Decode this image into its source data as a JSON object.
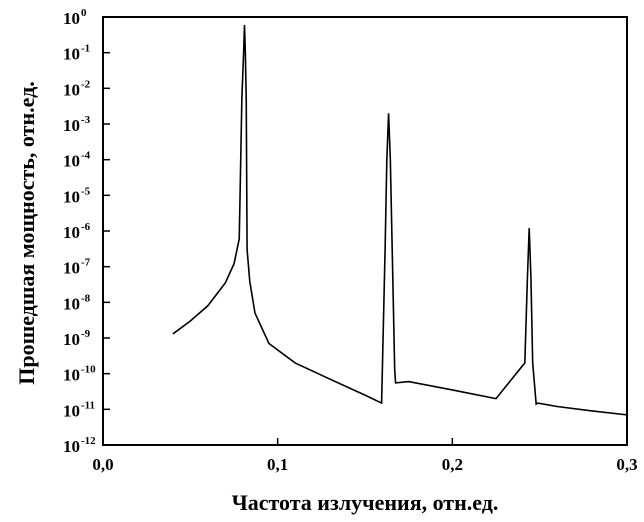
{
  "chart_data": {
    "type": "line",
    "title": "",
    "xlabel": "Частота излучения, отн.ед.",
    "ylabel": "Прошедшая мощность, отн.ед.",
    "xlim": [
      0.0,
      0.3
    ],
    "ylim": [
      1e-12,
      1
    ],
    "y_scale": "log",
    "grid": false,
    "legend": "none",
    "line_color": "#000000",
    "x_ticks": [
      {
        "value": 0.0,
        "label": "0,0"
      },
      {
        "value": 0.1,
        "label": "0,1"
      },
      {
        "value": 0.2,
        "label": "0,2"
      },
      {
        "value": 0.3,
        "label": "0,3"
      }
    ],
    "y_ticks": [
      {
        "exp": 0,
        "base": "10",
        "sup": "0"
      },
      {
        "exp": -1,
        "base": "10",
        "sup": "-1"
      },
      {
        "exp": -2,
        "base": "10",
        "sup": "-2"
      },
      {
        "exp": -3,
        "base": "10",
        "sup": "-3"
      },
      {
        "exp": -4,
        "base": "10",
        "sup": "-4"
      },
      {
        "exp": -5,
        "base": "10",
        "sup": "-5"
      },
      {
        "exp": -6,
        "base": "10",
        "sup": "-6"
      },
      {
        "exp": -7,
        "base": "10",
        "sup": "-7"
      },
      {
        "exp": -8,
        "base": "10",
        "sup": "-8"
      },
      {
        "exp": -9,
        "base": "10",
        "sup": "-9"
      },
      {
        "exp": -10,
        "base": "10",
        "sup": "-10"
      },
      {
        "exp": -11,
        "base": "10",
        "sup": "-11"
      },
      {
        "exp": -12,
        "base": "10",
        "sup": "-12"
      }
    ],
    "series": [
      {
        "x": [
          0.04,
          0.05,
          0.06,
          0.07,
          0.075,
          0.078,
          0.0795,
          0.0805,
          0.081,
          0.0815,
          0.082,
          0.0825,
          0.084,
          0.087,
          0.095,
          0.11,
          0.13,
          0.15,
          0.1595,
          0.1615,
          0.1625,
          0.1635,
          0.1645,
          0.166,
          0.167,
          0.1675,
          0.175,
          0.2,
          0.225,
          0.2415,
          0.243,
          0.244,
          0.245,
          0.246,
          0.248,
          0.249,
          0.26,
          0.28,
          0.3
        ],
        "y": [
          1.3e-09,
          3e-09,
          8e-09,
          3.5e-08,
          1.2e-07,
          6e-07,
          0.005,
          0.1,
          0.6,
          0.1,
          0.005,
          3e-07,
          4e-08,
          5e-09,
          7e-10,
          2e-10,
          7e-11,
          2.5e-11,
          1.5e-11,
          3e-07,
          0.0001,
          0.002,
          0.0001,
          3e-08,
          1.3e-10,
          5.5e-11,
          6e-11,
          3.5e-11,
          2e-11,
          2e-10,
          5e-08,
          1.2e-06,
          5e-08,
          2e-10,
          1.4e-11,
          1.5e-11,
          1.2e-11,
          9e-12,
          7e-12
        ]
      }
    ]
  }
}
